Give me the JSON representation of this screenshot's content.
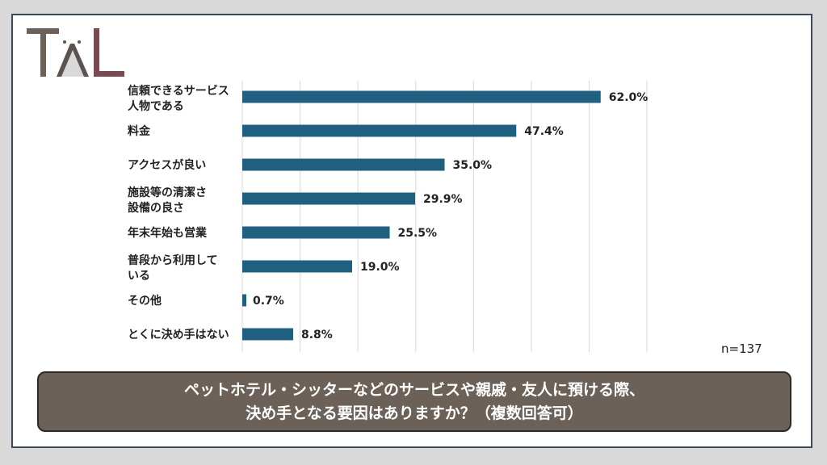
{
  "logo": {
    "text": "TAL"
  },
  "chart_data": {
    "type": "bar",
    "orientation": "horizontal",
    "categories": [
      [
        "信頼できるサービス",
        "人物である"
      ],
      [
        "料金"
      ],
      [
        "アクセスが良い"
      ],
      [
        "施設等の清潔さ",
        "設備の良さ"
      ],
      [
        "年末年始も営業"
      ],
      [
        "普段から利用して",
        "いる"
      ],
      [
        "その他"
      ],
      [
        "とくに決め手はない"
      ]
    ],
    "values": [
      62.0,
      47.4,
      35.0,
      29.9,
      25.5,
      19.0,
      0.7,
      8.8
    ],
    "value_labels": [
      "62.0%",
      "47.4%",
      "35.0%",
      "29.9%",
      "25.5%",
      "19.0%",
      "0.7%",
      "8.8%"
    ],
    "xlim": [
      0,
      70
    ],
    "grid": true,
    "bar_color": "#1f5f80",
    "annotation": "n=137",
    "title": [
      "ペットホテル・シッターなどのサービスや親戚・友人に預ける際、",
      "決め手となる要因はありますか？（複数回答可）"
    ]
  }
}
